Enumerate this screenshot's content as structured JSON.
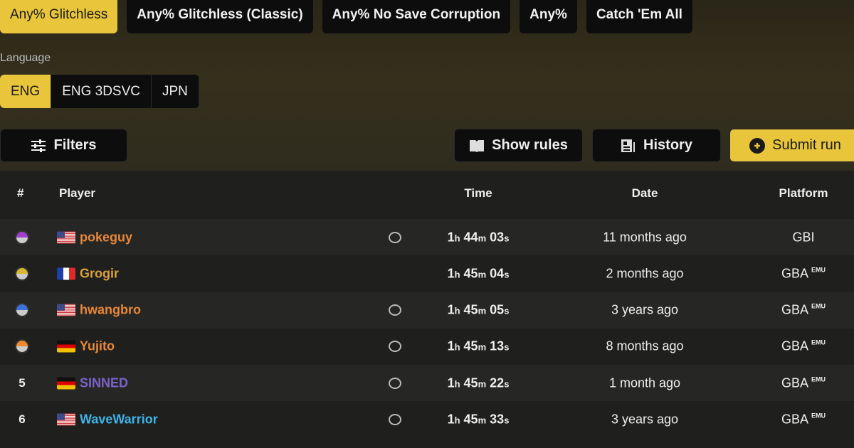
{
  "category_tabs": [
    {
      "label": "Any% Glitchless",
      "active": true
    },
    {
      "label": "Any% Glitchless (Classic)"
    },
    {
      "label": "Any% No Save Corruption"
    },
    {
      "label": "Any%"
    },
    {
      "label": "Catch 'Em All"
    }
  ],
  "language": {
    "label": "Language",
    "options": [
      {
        "label": "ENG",
        "active": true
      },
      {
        "label": "ENG 3DSVC"
      },
      {
        "label": "JPN"
      }
    ]
  },
  "toolbar": {
    "filters": "Filters",
    "show_rules": "Show rules",
    "history": "History",
    "submit_run": "Submit run"
  },
  "table": {
    "headers": {
      "rank": "#",
      "player": "Player",
      "time": "Time",
      "date": "Date",
      "platform": "Platform"
    },
    "rows": [
      {
        "rank": "1",
        "rank_icon": "master-ball-icon",
        "flag": "us",
        "player": "pokeguy",
        "color": "#e8873a",
        "comment": true,
        "h": "1",
        "m": "44",
        "s": "03",
        "date": "11 months ago",
        "platform": "GBI",
        "emu": ""
      },
      {
        "rank": "2",
        "rank_icon": "ultra-ball-icon",
        "flag": "fr",
        "player": "Grogir",
        "color": "#d9a23a",
        "comment": false,
        "h": "1",
        "m": "45",
        "s": "04",
        "date": "2 months ago",
        "platform": "GBA",
        "emu": "EMU"
      },
      {
        "rank": "3",
        "rank_icon": "great-ball-icon",
        "flag": "us",
        "player": "hwangbro",
        "color": "#e8873a",
        "comment": true,
        "h": "1",
        "m": "45",
        "s": "05",
        "date": "3 years ago",
        "platform": "GBA",
        "emu": "EMU"
      },
      {
        "rank": "4",
        "rank_icon": "poke-ball-icon",
        "flag": "de",
        "player": "Yujito",
        "color": "#e8873a",
        "comment": true,
        "h": "1",
        "m": "45",
        "s": "13",
        "date": "8 months ago",
        "platform": "GBA",
        "emu": "EMU"
      },
      {
        "rank": "5",
        "flag": "de",
        "player": "SINNED",
        "color": "#7a62c8",
        "comment": true,
        "h": "1",
        "m": "45",
        "s": "22",
        "date": "1 month ago",
        "platform": "GBA",
        "emu": "EMU"
      },
      {
        "rank": "6",
        "flag": "us",
        "player": "WaveWarrior",
        "color": "#3fb4e8",
        "comment": true,
        "h": "1",
        "m": "45",
        "s": "33",
        "date": "3 years ago",
        "platform": "GBA",
        "emu": "EMU"
      }
    ]
  },
  "colors": {
    "accent": "#e8c53a"
  }
}
